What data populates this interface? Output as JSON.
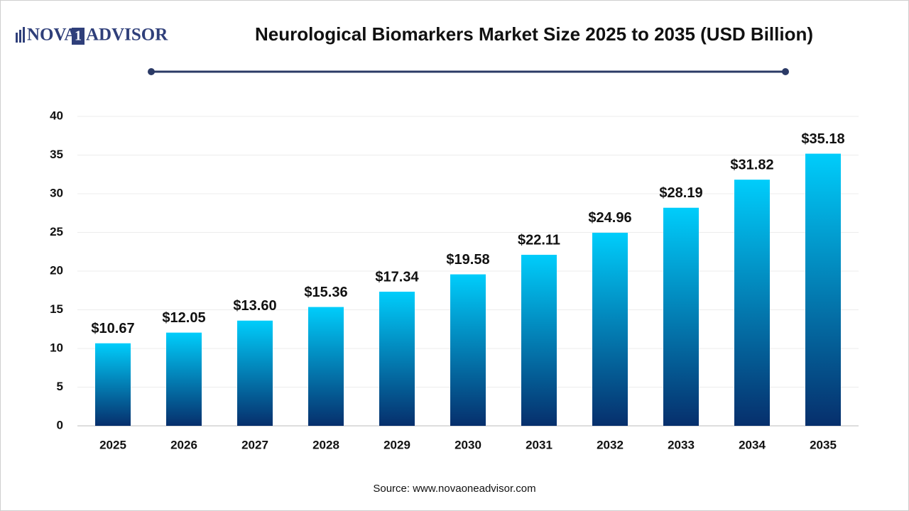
{
  "logo": {
    "left": "NOVA",
    "mark": "1",
    "right": "ADVISOR"
  },
  "chart_data": {
    "type": "bar",
    "title": "Neurological Biomarkers Market Size 2025 to 2035 (USD Billion)",
    "categories": [
      "2025",
      "2026",
      "2027",
      "2028",
      "2029",
      "2030",
      "2031",
      "2032",
      "2033",
      "2034",
      "2035"
    ],
    "values": [
      10.67,
      12.05,
      13.6,
      15.36,
      17.34,
      19.58,
      22.11,
      24.96,
      28.19,
      31.82,
      35.18
    ],
    "value_labels": [
      "$10.67",
      "$12.05",
      "$13.60",
      "$15.36",
      "$17.34",
      "$19.58",
      "$22.11",
      "$24.96",
      "$28.19",
      "$31.82",
      "$35.18"
    ],
    "gradient": [
      "#00cdfb",
      "#062f6c"
    ],
    "ylim": [
      0,
      40
    ],
    "yticks": [
      0,
      5,
      10,
      15,
      20,
      25,
      30,
      35,
      40
    ],
    "grid": true,
    "source": "Source: www.novaoneadvisor.com"
  }
}
